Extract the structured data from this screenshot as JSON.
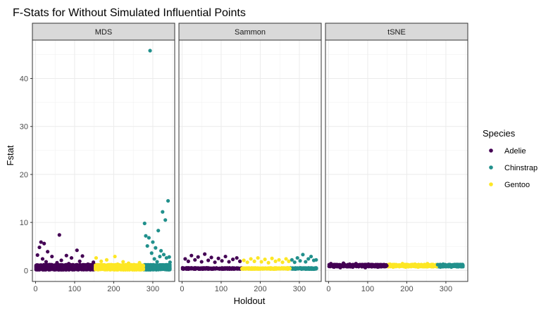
{
  "chart_data": {
    "type": "scatter",
    "title": "F-Stats for Without Simulated Influential Points",
    "xlabel": "Holdout",
    "ylabel": "Fstat",
    "xlim": [
      -8,
      356
    ],
    "ylim": [
      -2.3,
      48.0
    ],
    "x_ticks": [
      0,
      100,
      200,
      300
    ],
    "y_ticks": [
      0,
      10,
      20,
      30,
      40
    ],
    "x_tick_labels": [
      "0",
      "100",
      "200",
      "300"
    ],
    "y_tick_labels": [
      "0",
      "10",
      "20",
      "30",
      "40"
    ],
    "grid": true,
    "legend_position": "right",
    "legend_title": "Species",
    "panels": [
      "MDS",
      "Sammon",
      "tSNE"
    ],
    "series": [
      {
        "name": "Adelie",
        "color": "#440154",
        "x_range": [
          1,
          152
        ]
      },
      {
        "name": "Chinstrap",
        "color": "#21908C",
        "x_range": [
          277,
          344
        ]
      },
      {
        "name": "Gentoo",
        "color": "#FDE725",
        "x_range": [
          153,
          276
        ]
      }
    ],
    "panel_points": {
      "MDS": [
        {
          "series": "Adelie",
          "x": 5,
          "y": 3.2
        },
        {
          "series": "Adelie",
          "x": 10,
          "y": 4.8
        },
        {
          "series": "Adelie",
          "x": 14,
          "y": 5.9
        },
        {
          "series": "Adelie",
          "x": 18,
          "y": 2.4
        },
        {
          "series": "Adelie",
          "x": 22,
          "y": 5.6
        },
        {
          "series": "Adelie",
          "x": 27,
          "y": 1.8
        },
        {
          "series": "Adelie",
          "x": 31,
          "y": 3.9
        },
        {
          "series": "Adelie",
          "x": 36,
          "y": 1.2
        },
        {
          "series": "Adelie",
          "x": 42,
          "y": 2.9
        },
        {
          "series": "Adelie",
          "x": 48,
          "y": 0.9
        },
        {
          "series": "Adelie",
          "x": 55,
          "y": 1.6
        },
        {
          "series": "Adelie",
          "x": 61,
          "y": 7.4
        },
        {
          "series": "Adelie",
          "x": 66,
          "y": 2.1
        },
        {
          "series": "Adelie",
          "x": 72,
          "y": 0.7
        },
        {
          "series": "Adelie",
          "x": 79,
          "y": 3.1
        },
        {
          "series": "Adelie",
          "x": 85,
          "y": 1.4
        },
        {
          "series": "Adelie",
          "x": 92,
          "y": 2.6
        },
        {
          "series": "Adelie",
          "x": 100,
          "y": 0.8
        },
        {
          "series": "Adelie",
          "x": 106,
          "y": 4.2
        },
        {
          "series": "Adelie",
          "x": 113,
          "y": 1.9
        },
        {
          "series": "Adelie",
          "x": 120,
          "y": 3.0
        },
        {
          "series": "Adelie",
          "x": 128,
          "y": 0.6
        },
        {
          "series": "Adelie",
          "x": 134,
          "y": 1.3
        },
        {
          "series": "Adelie",
          "x": 142,
          "y": 0.9
        },
        {
          "series": "Adelie",
          "x": 148,
          "y": 1.7
        },
        {
          "series": "Gentoo",
          "x": 155,
          "y": 2.6
        },
        {
          "series": "Gentoo",
          "x": 161,
          "y": 0.8
        },
        {
          "series": "Gentoo",
          "x": 168,
          "y": 1.9
        },
        {
          "series": "Gentoo",
          "x": 175,
          "y": 0.5
        },
        {
          "series": "Gentoo",
          "x": 182,
          "y": 2.2
        },
        {
          "series": "Gentoo",
          "x": 189,
          "y": 1.1
        },
        {
          "series": "Gentoo",
          "x": 196,
          "y": 0.6
        },
        {
          "series": "Gentoo",
          "x": 203,
          "y": 2.9
        },
        {
          "series": "Gentoo",
          "x": 210,
          "y": 1.3
        },
        {
          "series": "Gentoo",
          "x": 217,
          "y": 0.7
        },
        {
          "series": "Gentoo",
          "x": 224,
          "y": 1.8
        },
        {
          "series": "Gentoo",
          "x": 231,
          "y": 0.9
        },
        {
          "series": "Gentoo",
          "x": 238,
          "y": 1.5
        },
        {
          "series": "Gentoo",
          "x": 245,
          "y": 0.6
        },
        {
          "series": "Gentoo",
          "x": 252,
          "y": 1.2
        },
        {
          "series": "Gentoo",
          "x": 259,
          "y": 0.8
        },
        {
          "series": "Gentoo",
          "x": 266,
          "y": 1.6
        },
        {
          "series": "Gentoo",
          "x": 272,
          "y": 0.9
        },
        {
          "series": "Chinstrap",
          "x": 279,
          "y": 9.8
        },
        {
          "series": "Chinstrap",
          "x": 282,
          "y": 7.2
        },
        {
          "series": "Chinstrap",
          "x": 286,
          "y": 5.1
        },
        {
          "series": "Chinstrap",
          "x": 290,
          "y": 6.8
        },
        {
          "series": "Chinstrap",
          "x": 293,
          "y": 45.8
        },
        {
          "series": "Chinstrap",
          "x": 297,
          "y": 3.6
        },
        {
          "series": "Chinstrap",
          "x": 300,
          "y": 5.9
        },
        {
          "series": "Chinstrap",
          "x": 304,
          "y": 2.4
        },
        {
          "series": "Chinstrap",
          "x": 307,
          "y": 4.7
        },
        {
          "series": "Chinstrap",
          "x": 311,
          "y": 1.8
        },
        {
          "series": "Chinstrap",
          "x": 314,
          "y": 8.3
        },
        {
          "series": "Chinstrap",
          "x": 318,
          "y": 2.9
        },
        {
          "series": "Chinstrap",
          "x": 321,
          "y": 4.1
        },
        {
          "series": "Chinstrap",
          "x": 325,
          "y": 12.2
        },
        {
          "series": "Chinstrap",
          "x": 328,
          "y": 3.3
        },
        {
          "series": "Chinstrap",
          "x": 332,
          "y": 10.5
        },
        {
          "series": "Chinstrap",
          "x": 335,
          "y": 2.6
        },
        {
          "series": "Chinstrap",
          "x": 339,
          "y": 14.5
        },
        {
          "series": "Chinstrap",
          "x": 342,
          "y": 2.8
        },
        {
          "series": "Chinstrap",
          "x": 344,
          "y": 1.7
        }
      ],
      "Sammon": [
        {
          "series": "Adelie",
          "x": 8,
          "y": 2.4
        },
        {
          "series": "Adelie",
          "x": 16,
          "y": 1.9
        },
        {
          "series": "Adelie",
          "x": 24,
          "y": 3.1
        },
        {
          "series": "Adelie",
          "x": 33,
          "y": 2.2
        },
        {
          "series": "Adelie",
          "x": 41,
          "y": 2.8
        },
        {
          "series": "Adelie",
          "x": 50,
          "y": 1.8
        },
        {
          "series": "Adelie",
          "x": 58,
          "y": 3.4
        },
        {
          "series": "Adelie",
          "x": 67,
          "y": 2.1
        },
        {
          "series": "Adelie",
          "x": 75,
          "y": 2.7
        },
        {
          "series": "Adelie",
          "x": 84,
          "y": 1.7
        },
        {
          "series": "Adelie",
          "x": 93,
          "y": 2.5
        },
        {
          "series": "Adelie",
          "x": 102,
          "y": 2.0
        },
        {
          "series": "Adelie",
          "x": 111,
          "y": 2.9
        },
        {
          "series": "Adelie",
          "x": 120,
          "y": 1.8
        },
        {
          "series": "Adelie",
          "x": 130,
          "y": 2.3
        },
        {
          "series": "Adelie",
          "x": 140,
          "y": 2.6
        },
        {
          "series": "Adelie",
          "x": 148,
          "y": 1.9
        },
        {
          "series": "Gentoo",
          "x": 158,
          "y": 2.1
        },
        {
          "series": "Gentoo",
          "x": 167,
          "y": 1.7
        },
        {
          "series": "Gentoo",
          "x": 176,
          "y": 2.4
        },
        {
          "series": "Gentoo",
          "x": 185,
          "y": 1.9
        },
        {
          "series": "Gentoo",
          "x": 194,
          "y": 2.6
        },
        {
          "series": "Gentoo",
          "x": 203,
          "y": 1.8
        },
        {
          "series": "Gentoo",
          "x": 212,
          "y": 2.3
        },
        {
          "series": "Gentoo",
          "x": 221,
          "y": 1.6
        },
        {
          "series": "Gentoo",
          "x": 230,
          "y": 2.5
        },
        {
          "series": "Gentoo",
          "x": 239,
          "y": 1.9
        },
        {
          "series": "Gentoo",
          "x": 248,
          "y": 2.2
        },
        {
          "series": "Gentoo",
          "x": 257,
          "y": 1.7
        },
        {
          "series": "Gentoo",
          "x": 266,
          "y": 2.4
        },
        {
          "series": "Gentoo",
          "x": 273,
          "y": 1.9
        },
        {
          "series": "Chinstrap",
          "x": 281,
          "y": 2.2
        },
        {
          "series": "Chinstrap",
          "x": 288,
          "y": 1.7
        },
        {
          "series": "Chinstrap",
          "x": 295,
          "y": 2.6
        },
        {
          "series": "Chinstrap",
          "x": 302,
          "y": 2.0
        },
        {
          "series": "Chinstrap",
          "x": 309,
          "y": 3.3
        },
        {
          "series": "Chinstrap",
          "x": 316,
          "y": 1.8
        },
        {
          "series": "Chinstrap",
          "x": 323,
          "y": 2.4
        },
        {
          "series": "Chinstrap",
          "x": 330,
          "y": 2.9
        },
        {
          "series": "Chinstrap",
          "x": 337,
          "y": 2.1
        },
        {
          "series": "Chinstrap",
          "x": 343,
          "y": 2.2
        }
      ],
      "tSNE": [
        {
          "series": "Adelie",
          "x": 6,
          "y": 1.4
        },
        {
          "series": "Adelie",
          "x": 14,
          "y": 0.7
        },
        {
          "series": "Adelie",
          "x": 22,
          "y": 1.2
        },
        {
          "series": "Adelie",
          "x": 30,
          "y": 0.6
        },
        {
          "series": "Adelie",
          "x": 38,
          "y": 1.5
        },
        {
          "series": "Adelie",
          "x": 46,
          "y": 0.8
        },
        {
          "series": "Adelie",
          "x": 54,
          "y": 1.3
        },
        {
          "series": "Adelie",
          "x": 62,
          "y": 0.7
        },
        {
          "series": "Adelie",
          "x": 70,
          "y": 1.4
        },
        {
          "series": "Adelie",
          "x": 78,
          "y": 0.9
        },
        {
          "series": "Adelie",
          "x": 86,
          "y": 1.2
        },
        {
          "series": "Adelie",
          "x": 94,
          "y": 0.6
        },
        {
          "series": "Adelie",
          "x": 102,
          "y": 1.3
        },
        {
          "series": "Adelie",
          "x": 110,
          "y": 0.8
        },
        {
          "series": "Adelie",
          "x": 118,
          "y": 1.1
        },
        {
          "series": "Adelie",
          "x": 126,
          "y": 0.7
        },
        {
          "series": "Adelie",
          "x": 134,
          "y": 1.2
        },
        {
          "series": "Adelie",
          "x": 142,
          "y": 0.8
        },
        {
          "series": "Adelie",
          "x": 149,
          "y": 1.0
        },
        {
          "series": "Gentoo",
          "x": 157,
          "y": 1.3
        },
        {
          "series": "Gentoo",
          "x": 165,
          "y": 0.7
        },
        {
          "series": "Gentoo",
          "x": 173,
          "y": 1.2
        },
        {
          "series": "Gentoo",
          "x": 181,
          "y": 0.8
        },
        {
          "series": "Gentoo",
          "x": 189,
          "y": 1.4
        },
        {
          "series": "Gentoo",
          "x": 197,
          "y": 0.7
        },
        {
          "series": "Gentoo",
          "x": 205,
          "y": 1.1
        },
        {
          "series": "Gentoo",
          "x": 213,
          "y": 0.9
        },
        {
          "series": "Gentoo",
          "x": 221,
          "y": 1.3
        },
        {
          "series": "Gentoo",
          "x": 229,
          "y": 0.7
        },
        {
          "series": "Gentoo",
          "x": 237,
          "y": 1.2
        },
        {
          "series": "Gentoo",
          "x": 245,
          "y": 0.8
        },
        {
          "series": "Gentoo",
          "x": 253,
          "y": 1.4
        },
        {
          "series": "Gentoo",
          "x": 261,
          "y": 0.9
        },
        {
          "series": "Gentoo",
          "x": 269,
          "y": 1.1
        },
        {
          "series": "Chinstrap",
          "x": 279,
          "y": 1.2
        },
        {
          "series": "Chinstrap",
          "x": 286,
          "y": 0.7
        },
        {
          "series": "Chinstrap",
          "x": 293,
          "y": 1.3
        },
        {
          "series": "Chinstrap",
          "x": 300,
          "y": 0.8
        },
        {
          "series": "Chinstrap",
          "x": 307,
          "y": 1.2
        },
        {
          "series": "Chinstrap",
          "x": 314,
          "y": 0.7
        },
        {
          "series": "Chinstrap",
          "x": 321,
          "y": 1.1
        },
        {
          "series": "Chinstrap",
          "x": 328,
          "y": 0.9
        },
        {
          "series": "Chinstrap",
          "x": 335,
          "y": 1.2
        },
        {
          "series": "Chinstrap",
          "x": 342,
          "y": 0.8
        }
      ]
    },
    "panel_baselines": {
      "MDS": [
        0.2,
        0.5,
        0.9,
        0.3,
        0.7,
        1.1,
        0.4
      ],
      "Sammon": [
        0.35,
        0.45
      ],
      "tSNE": [
        0.85,
        1.0,
        1.15
      ]
    }
  }
}
